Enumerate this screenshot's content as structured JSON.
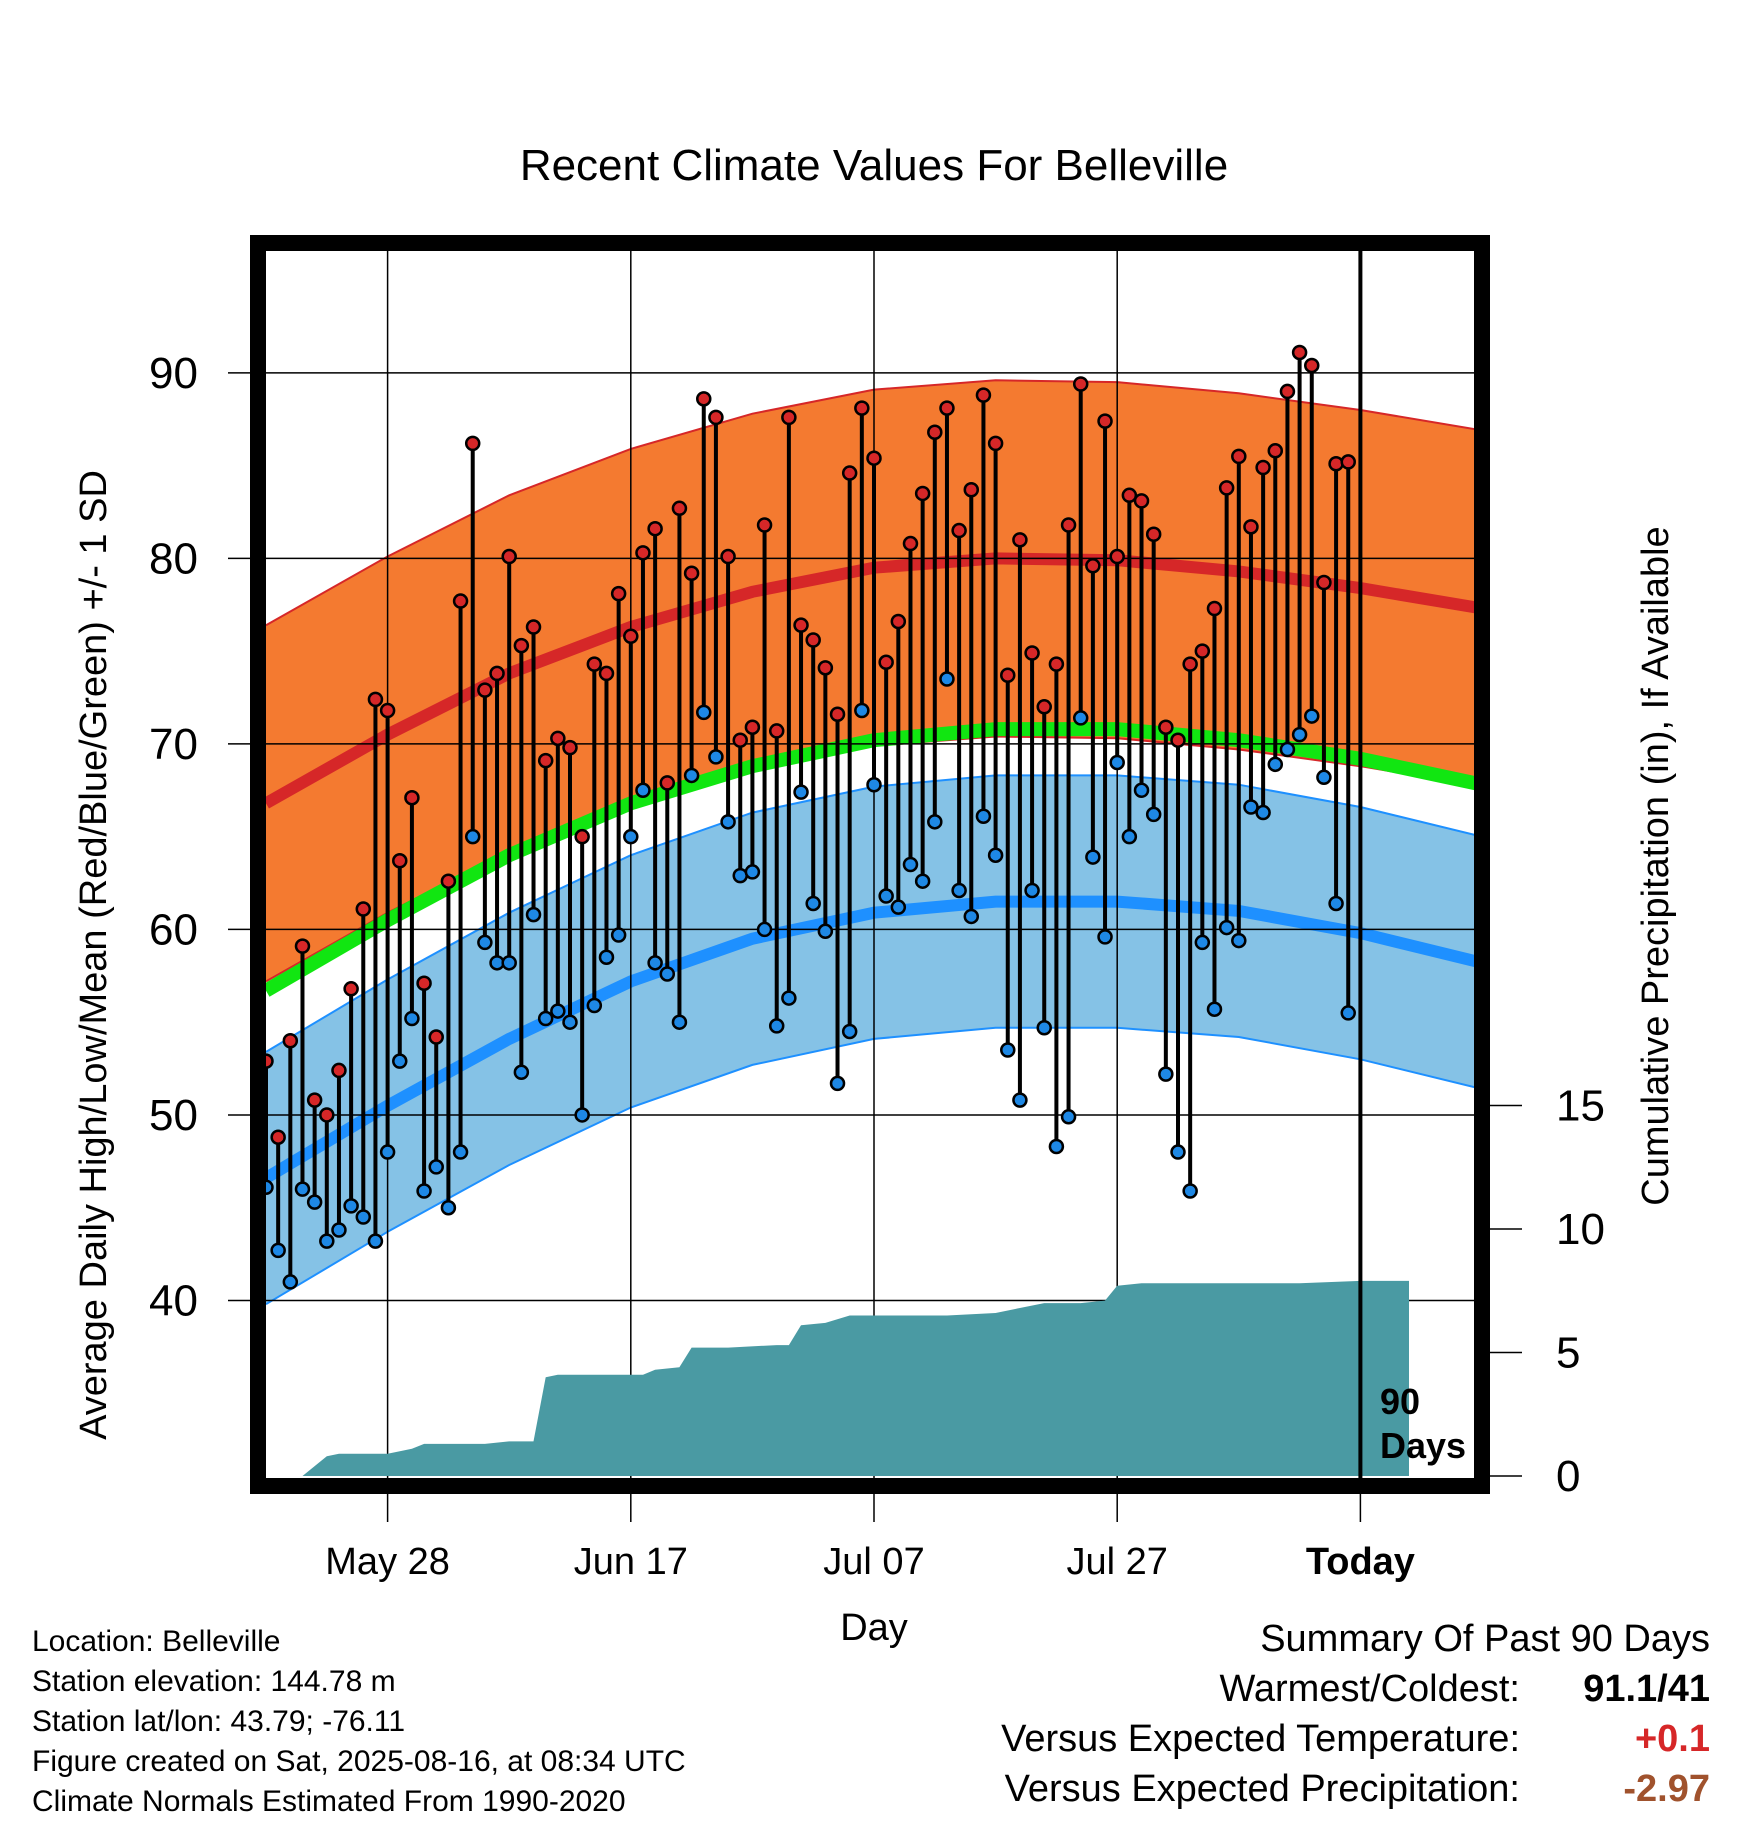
{
  "title": "Recent Climate Values For Belleville",
  "y_axis_label": "Average Daily High/Low/Mean (Red/Blue/Green) +/- 1 SD",
  "y2_axis_label": "Cumulative Precipitation (in), If Available",
  "x_axis_label": "Day",
  "marker_label": [
    "90",
    "Days"
  ],
  "colors": {
    "high_band": "#f47a30",
    "high_mean": "#d62728",
    "low_band": "#85c2e6",
    "low_mean": "#1e90ff",
    "mean_line": "#11e611",
    "precip": "#4a9aa3",
    "high_point": "#d62728",
    "low_point": "#1e88e5",
    "temp_diff": "#d62728",
    "precip_diff": "#a0522d"
  },
  "info": {
    "location": "Location: Belleville",
    "elevation": "Station elevation: 144.78 m",
    "latlon": "Station lat/lon: 43.79; -76.11",
    "created": "Figure created on Sat, 2025-08-16, at 08:34 UTC",
    "normals": "Climate Normals Estimated From 1990-2020"
  },
  "summary": {
    "heading": "Summary Of Past 90 Days",
    "warm_cold_label": "Warmest/Coldest:",
    "warm_cold_value": "91.1/41",
    "temp_label": "Versus Expected Temperature:",
    "temp_value": "+0.1",
    "precip_label": "Versus Expected Precipitation:",
    "precip_value": "-2.97"
  },
  "chart_data": {
    "type": "line",
    "x_ticks": [
      {
        "day": 10,
        "label": "May 28"
      },
      {
        "day": 30,
        "label": "Jun 17"
      },
      {
        "day": 50,
        "label": "Jul 07"
      },
      {
        "day": 70,
        "label": "Jul 27"
      },
      {
        "day": 90,
        "label": "Today"
      }
    ],
    "xlim": [
      0,
      100
    ],
    "ylim": [
      30,
      97
    ],
    "y_ticks": [
      40,
      50,
      60,
      70,
      80,
      90
    ],
    "y2_ticks": [
      0,
      5,
      10,
      15
    ],
    "y2_lim": [
      0,
      40
    ],
    "today_day": 90,
    "normals": {
      "days": [
        0,
        10,
        20,
        30,
        40,
        50,
        60,
        70,
        80,
        90,
        100
      ],
      "high_mean": [
        66.8,
        70.5,
        73.8,
        76.3,
        78.2,
        79.5,
        80.0,
        79.9,
        79.3,
        78.4,
        77.3
      ],
      "high_sd": 9.6,
      "low_mean": [
        46.6,
        50.5,
        54.1,
        57.2,
        59.5,
        60.9,
        61.5,
        61.5,
        61.0,
        59.8,
        58.2
      ],
      "low_sd": 6.8,
      "avg_mean": [
        56.7,
        60.5,
        64.0,
        66.8,
        68.8,
        70.2,
        70.8,
        70.8,
        70.2,
        69.2,
        67.8
      ]
    },
    "daily_highs": [
      52.9,
      48.8,
      54.0,
      59.1,
      50.8,
      50.0,
      52.4,
      56.8,
      61.1,
      72.4,
      71.8,
      63.7,
      67.1,
      57.1,
      54.2,
      62.6,
      77.7,
      86.2,
      72.9,
      73.8,
      80.1,
      75.3,
      76.3,
      69.1,
      70.3,
      69.8,
      65.0,
      74.3,
      73.8,
      78.1,
      75.8,
      80.3,
      81.6,
      67.9,
      82.7,
      79.2,
      88.6,
      87.6,
      80.1,
      70.2,
      70.9,
      81.8,
      70.7,
      87.6,
      76.4,
      75.6,
      74.1,
      71.6,
      84.6,
      88.1,
      85.4,
      74.4,
      76.6,
      80.8,
      83.5,
      86.8,
      88.1,
      81.5,
      83.7,
      88.8,
      86.2,
      73.7,
      81.0,
      74.9,
      72.0,
      74.3,
      81.8,
      89.4,
      79.6,
      87.4,
      80.1,
      83.4,
      83.1,
      81.3,
      70.9,
      70.2,
      74.3,
      75.0,
      77.3,
      83.8,
      85.5,
      81.7,
      84.9,
      85.8,
      89.0,
      91.1,
      90.4,
      78.7,
      85.1,
      85.2
    ],
    "daily_lows": [
      46.1,
      42.7,
      41.0,
      46.0,
      45.3,
      43.2,
      43.8,
      45.1,
      44.5,
      43.2,
      48.0,
      52.9,
      55.2,
      45.9,
      47.2,
      45.0,
      48.0,
      65.0,
      59.3,
      58.2,
      58.2,
      52.3,
      60.8,
      55.2,
      55.6,
      55.0,
      50.0,
      55.9,
      58.5,
      59.7,
      65.0,
      67.5,
      58.2,
      57.6,
      55.0,
      68.3,
      71.7,
      69.3,
      65.8,
      62.9,
      63.1,
      60.0,
      54.8,
      56.3,
      67.4,
      61.4,
      59.9,
      51.7,
      54.5,
      71.8,
      67.8,
      61.8,
      61.2,
      63.5,
      62.6,
      65.8,
      73.5,
      62.1,
      60.7,
      66.1,
      64.0,
      53.5,
      50.8,
      62.1,
      54.7,
      48.3,
      49.9,
      71.4,
      63.9,
      59.6,
      69.0,
      65.0,
      67.5,
      66.2,
      52.2,
      48.0,
      45.9,
      59.3,
      55.7,
      60.1,
      59.4,
      66.6,
      66.3,
      68.9,
      69.7,
      70.5,
      71.5,
      68.2,
      61.4,
      55.5
    ],
    "precip_cumulative": {
      "days": [
        0,
        3,
        5,
        6,
        8,
        10,
        11,
        12,
        13,
        14,
        16,
        18,
        20,
        21,
        22,
        23,
        24,
        26,
        28,
        30,
        31,
        32,
        34,
        35,
        38,
        42,
        43,
        44,
        46,
        48,
        50,
        56,
        60,
        62,
        64,
        67,
        69,
        70,
        72,
        76,
        78,
        85,
        90,
        94
      ],
      "values": [
        0.0,
        0.0,
        0.8,
        0.9,
        0.9,
        0.9,
        1.0,
        1.1,
        1.3,
        1.3,
        1.3,
        1.3,
        1.4,
        1.4,
        1.4,
        4.0,
        4.1,
        4.1,
        4.1,
        4.1,
        4.1,
        4.3,
        4.4,
        5.2,
        5.2,
        5.3,
        5.3,
        6.1,
        6.2,
        6.5,
        6.5,
        6.5,
        6.6,
        6.8,
        7.0,
        7.0,
        7.1,
        7.7,
        7.8,
        7.8,
        7.8,
        7.8,
        7.9,
        7.9
      ]
    }
  }
}
